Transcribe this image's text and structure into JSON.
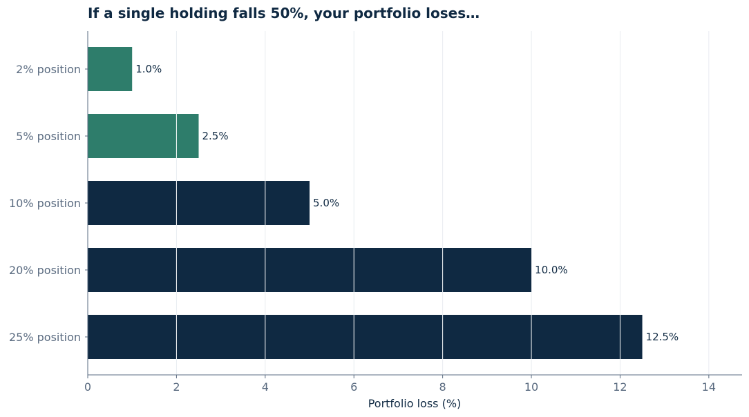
{
  "chart_data": {
    "type": "bar",
    "orientation": "horizontal",
    "title": "If a single holding falls 50%, your portfolio loses…",
    "xlabel": "Portfolio loss (%)",
    "ylabel": "",
    "categories": [
      "2% position",
      "5% position",
      "10% position",
      "20% position",
      "25% position"
    ],
    "values": [
      1.0,
      2.5,
      5.0,
      10.0,
      12.5
    ],
    "value_labels": [
      "1.0%",
      "2.5%",
      "5.0%",
      "10.0%",
      "12.5%"
    ],
    "bar_colors": [
      "#2e7d6b",
      "#2e7d6b",
      "#0f2942",
      "#0f2942",
      "#0f2942"
    ],
    "xlim": [
      0,
      14.75
    ],
    "xticks": [
      0,
      2,
      4,
      6,
      8,
      10,
      12,
      14
    ],
    "xtick_labels": [
      "0",
      "2",
      "4",
      "6",
      "8",
      "10",
      "12",
      "14"
    ],
    "grid": "vertical",
    "colors": {
      "title": "#0f2942",
      "axis": "#5a6b80",
      "grid": "#e8ecf0",
      "green": "#2e7d6b",
      "navy": "#0f2942"
    }
  }
}
